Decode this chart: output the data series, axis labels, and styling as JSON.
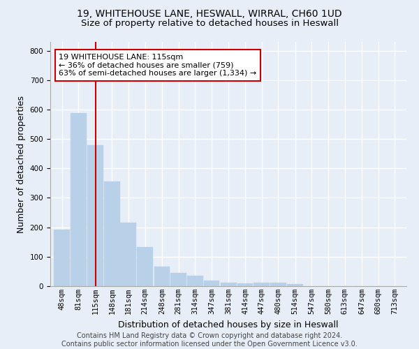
{
  "title1": "19, WHITEHOUSE LANE, HESWALL, WIRRAL, CH60 1UD",
  "title2": "Size of property relative to detached houses in Heswall",
  "xlabel": "Distribution of detached houses by size in Heswall",
  "ylabel": "Number of detached properties",
  "footer1": "Contains HM Land Registry data © Crown copyright and database right 2024.",
  "footer2": "Contains public sector information licensed under the Open Government Licence v3.0.",
  "bins": [
    48,
    81,
    115,
    148,
    181,
    214,
    248,
    281,
    314,
    347,
    381,
    414,
    447,
    480,
    514,
    547,
    580,
    613,
    647,
    680,
    713
  ],
  "values": [
    193,
    588,
    480,
    355,
    216,
    132,
    66,
    46,
    35,
    18,
    12,
    10,
    12,
    13,
    8,
    0,
    0,
    0,
    0,
    0,
    0
  ],
  "bar_color": "#b8d0e8",
  "bar_edge_color": "#b8d0e8",
  "vline_x": 115,
  "vline_color": "#cc0000",
  "annotation_text": "19 WHITEHOUSE LANE: 115sqm\n← 36% of detached houses are smaller (759)\n63% of semi-detached houses are larger (1,334) →",
  "box_color": "#ffffff",
  "box_edge_color": "#cc0000",
  "ylim": [
    0,
    830
  ],
  "yticks": [
    0,
    100,
    200,
    300,
    400,
    500,
    600,
    700,
    800
  ],
  "background_color": "#e8eef8",
  "grid_color": "#ffffff",
  "title_fontsize": 10,
  "subtitle_fontsize": 9.5,
  "tick_fontsize": 7.5,
  "label_fontsize": 9,
  "footer_fontsize": 7,
  "annotation_fontsize": 8
}
